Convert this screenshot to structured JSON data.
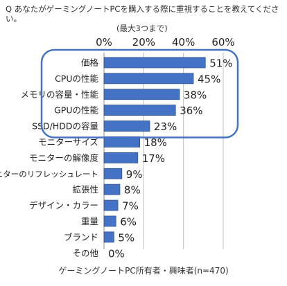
{
  "question": {
    "line1": "Q あなたがゲーミングノートPCを購入する際に重視することを教えてください。",
    "line2": "(最大3つまで)"
  },
  "footer": "ゲーミングノートPC所有者・興味者(n=470)",
  "colors": {
    "bar": "#4472C4",
    "bar_edge": "#2F528F",
    "highlight": "#4472C4",
    "grid": "#bfbfbf"
  },
  "chart_data": {
    "type": "bar",
    "orientation": "horizontal",
    "title": "",
    "xlabel": "",
    "ylabel": "",
    "xlim": [
      0,
      60
    ],
    "xticks": [
      0,
      20,
      40,
      60
    ],
    "xtick_labels": [
      "0%",
      "20%",
      "40%",
      "60%"
    ],
    "grid": true,
    "legend": "none",
    "highlighted_categories": [
      "価格",
      "CPUの性能",
      "メモリの容量・性能",
      "GPUの性能",
      "SSD/HDDの容量"
    ],
    "categories": [
      "価格",
      "CPUの性能",
      "メモリの容量・性能",
      "GPUの性能",
      "SSD/HDDの容量",
      "モニターサイズ",
      "モニターの解像度",
      "モニターのリフレッシュレート",
      "拡張性",
      "デザイン・カラー",
      "重量",
      "ブランド",
      "その他"
    ],
    "values": [
      51,
      45,
      38,
      36,
      23,
      18,
      17,
      9,
      8,
      7,
      6,
      5,
      0
    ],
    "value_labels": [
      "51%",
      "45%",
      "38%",
      "36%",
      "23%",
      "18%",
      "17%",
      "9%",
      "8%",
      "7%",
      "6%",
      "5%",
      "0%"
    ]
  }
}
